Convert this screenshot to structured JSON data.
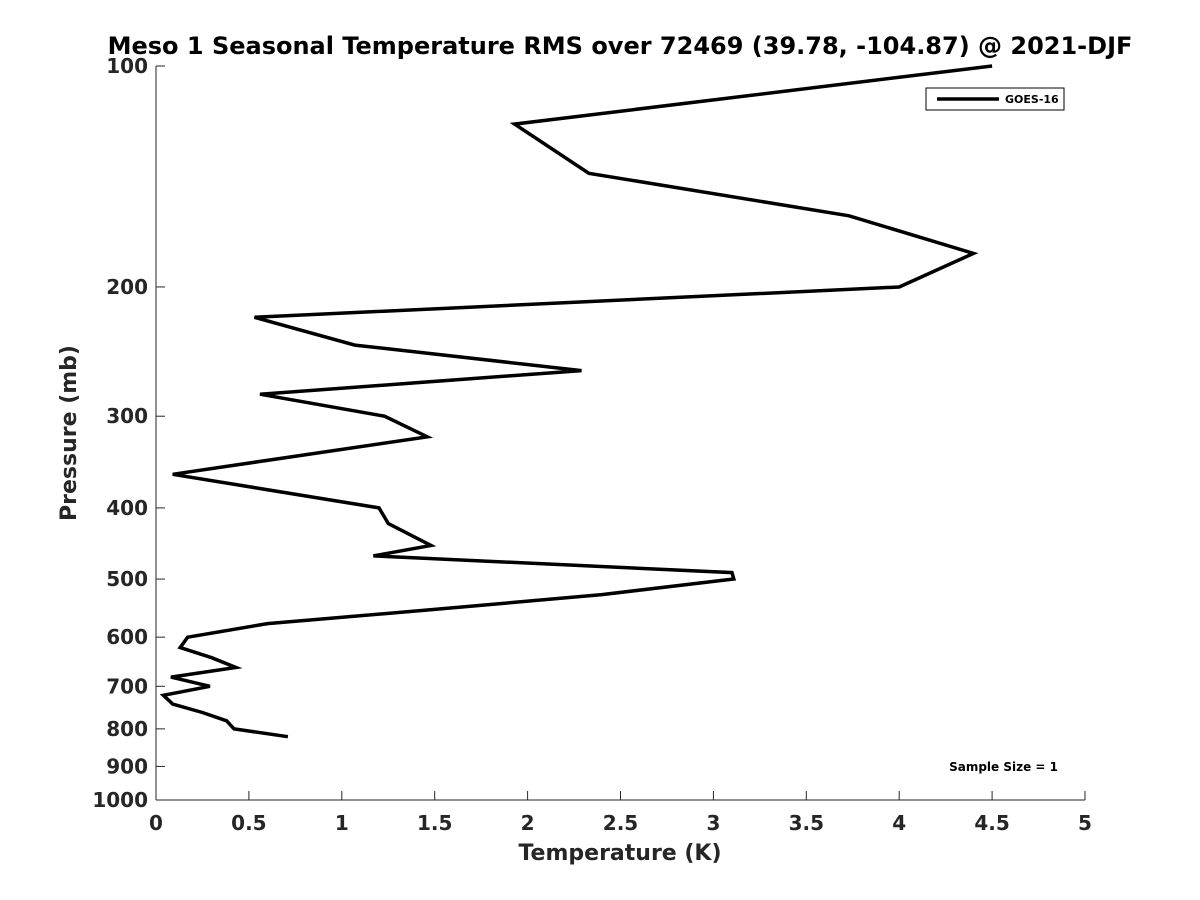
{
  "chart_data": {
    "type": "line",
    "title": "Meso 1 Seasonal Temperature RMS over 72469 (39.78, -104.87) @ 2021-DJF",
    "xlabel": "Temperature (K)",
    "ylabel": "Pressure (mb)",
    "xlim": [
      0,
      5
    ],
    "ylim": [
      1000,
      100
    ],
    "yscale": "log",
    "y_reversed": true,
    "grid": false,
    "legend_position": "top-right",
    "xticks": [
      "0",
      "0.5",
      "1",
      "1.5",
      "2",
      "2.5",
      "3",
      "3.5",
      "4",
      "4.5",
      "5"
    ],
    "yticks": [
      "100",
      "200",
      "300",
      "400",
      "500",
      "600",
      "700",
      "800",
      "900",
      "1000"
    ],
    "annotation": "Sample Size = 1",
    "line_color": "#000000",
    "series": [
      {
        "name": "GOES-16",
        "x": [
          4.5,
          1.93,
          2.33,
          3.73,
          4.4,
          4.0,
          0.53,
          1.07,
          2.29,
          0.56,
          1.23,
          1.46,
          0.09,
          1.2,
          1.25,
          1.48,
          1.17,
          3.1,
          3.11,
          2.4,
          1.5,
          0.6,
          0.17,
          0.13,
          0.3,
          0.43,
          0.08,
          0.29,
          0.04,
          0.09,
          0.25,
          0.38,
          0.42,
          0.71
        ],
        "y": [
          100,
          120,
          140,
          160,
          180,
          200,
          220,
          240,
          260,
          280,
          300,
          320,
          360,
          400,
          420,
          450,
          465,
          490,
          500,
          525,
          550,
          575,
          600,
          620,
          640,
          660,
          680,
          700,
          720,
          740,
          760,
          780,
          800,
          820
        ]
      }
    ]
  }
}
